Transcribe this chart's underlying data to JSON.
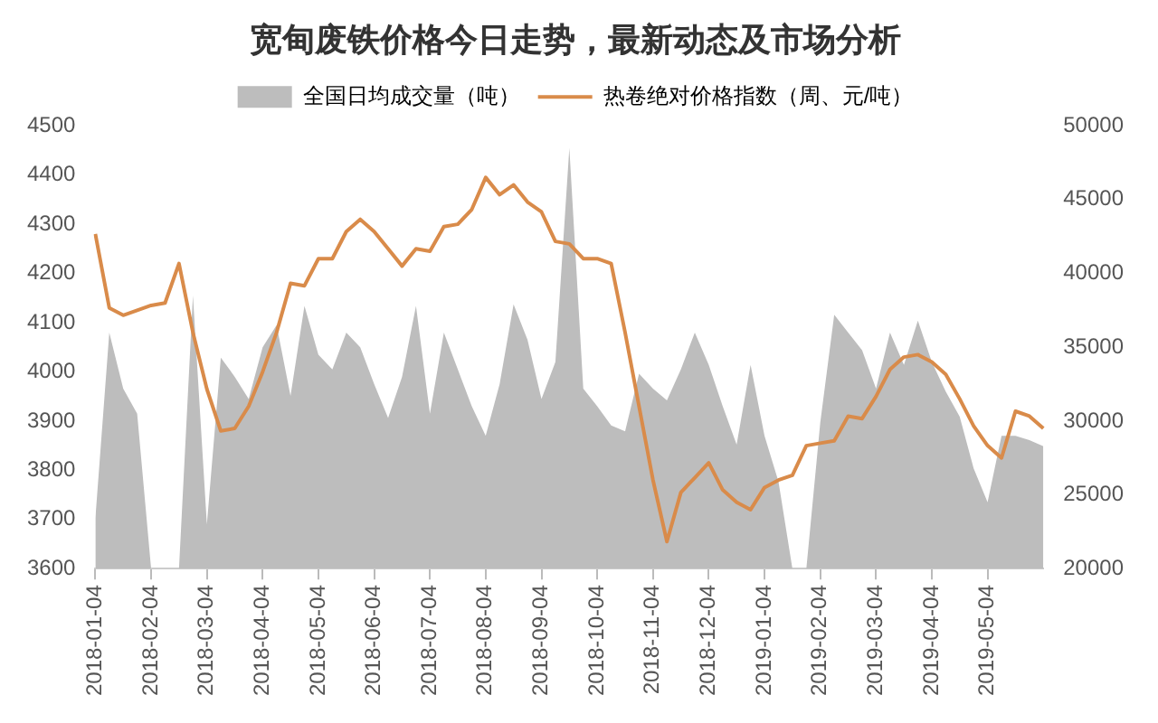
{
  "chart_data": {
    "type": "line",
    "title": "宽甸废铁价格今日走势，最新动态及市场分析",
    "categories": [
      "2018-01-04",
      null,
      null,
      null,
      "2018-02-04",
      null,
      null,
      null,
      "2018-03-04",
      null,
      null,
      null,
      "2018-04-04",
      null,
      null,
      null,
      "2018-05-04",
      null,
      null,
      null,
      "2018-06-04",
      null,
      null,
      null,
      "2018-07-04",
      null,
      null,
      null,
      "2018-08-04",
      null,
      null,
      null,
      "2018-09-04",
      null,
      null,
      null,
      "2018-10-04",
      null,
      null,
      null,
      "2018-11-04",
      null,
      null,
      null,
      "2018-12-04",
      null,
      null,
      null,
      "2019-01-04",
      null,
      null,
      null,
      "2019-02-04",
      null,
      null,
      null,
      "2019-03-04",
      null,
      null,
      null,
      "2019-04-04",
      null,
      null,
      null,
      "2019-05-04",
      null,
      null,
      null,
      null
    ],
    "series": [
      {
        "name": "全国日均成交量（吨）",
        "type": "area",
        "axis": "y2",
        "color": "#bdbdbd",
        "values": [
          23400,
          36000,
          32200,
          30500,
          20000,
          20000,
          20000,
          38500,
          23000,
          34300,
          33000,
          31500,
          35000,
          36500,
          31700,
          37800,
          34500,
          33500,
          36000,
          35000,
          32500,
          30200,
          33000,
          37800,
          30500,
          36000,
          33500,
          31000,
          29000,
          32500,
          37900,
          35500,
          31500,
          34000,
          48500,
          32200,
          31000,
          29700,
          29300,
          33200,
          32200,
          31400,
          33500,
          36000,
          33800,
          31000,
          28400,
          33800,
          29000,
          25900,
          20000,
          20000,
          29900,
          37200,
          36000,
          34800,
          32200,
          36000,
          33800,
          36800,
          34000,
          32000,
          30300,
          26800,
          24500,
          29000,
          29000,
          28700,
          28300
        ]
      },
      {
        "name": "热卷绝对价格指数（周、元/吨）",
        "type": "line",
        "color": "#d98b4a",
        "values": [
          4280,
          4130,
          4115,
          4125,
          4135,
          4140,
          4220,
          4080,
          3965,
          3880,
          3885,
          3930,
          4000,
          4080,
          4180,
          4175,
          4230,
          4230,
          4285,
          4310,
          4285,
          4250,
          4215,
          4250,
          4245,
          4295,
          4300,
          4330,
          4395,
          4360,
          4380,
          4345,
          4325,
          4265,
          4260,
          4230,
          4230,
          4220,
          4080,
          3930,
          3780,
          3655,
          3755,
          3785,
          3815,
          3760,
          3735,
          3720,
          3765,
          3780,
          3790,
          3850,
          3855,
          3860,
          3910,
          3905,
          3950,
          4005,
          4030,
          4035,
          4020,
          3995,
          3945,
          3890,
          3850,
          3825,
          3920,
          3910,
          3885
        ]
      }
    ],
    "ylim": [
      3600,
      4500
    ],
    "yticks": [
      3600,
      3700,
      3800,
      3900,
      4000,
      4100,
      4200,
      4300,
      4400,
      4500
    ],
    "y2lim": [
      20000,
      50000
    ],
    "y2ticks": [
      20000,
      25000,
      30000,
      35000,
      40000,
      45000,
      50000
    ],
    "legend": "top",
    "grid": false,
    "marker": "none"
  }
}
